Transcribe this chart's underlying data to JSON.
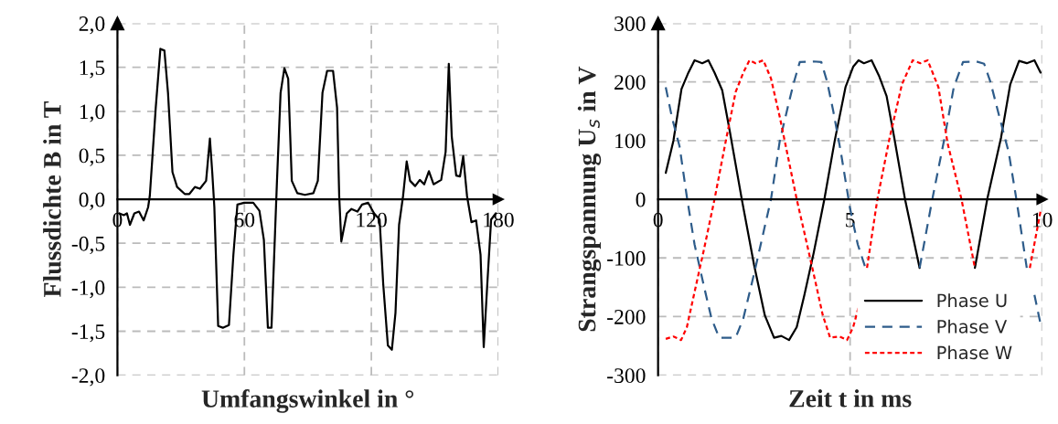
{
  "chart_data": [
    {
      "type": "line",
      "xlabel": "Umfangswinkel in °",
      "ylabel": "Flussdichte B in T",
      "xlim": [
        0,
        180
      ],
      "ylim": [
        -2.0,
        2.0
      ],
      "xticks": [
        0,
        60,
        120,
        180
      ],
      "yticks": [
        {
          "value": -2.0,
          "label": "-2,0"
        },
        {
          "value": -1.5,
          "label": "-1,5"
        },
        {
          "value": -1.0,
          "label": "-1,0"
        },
        {
          "value": -0.5,
          "label": "-0,5"
        },
        {
          "value": 0.0,
          "label": "0,0"
        },
        {
          "value": 0.5,
          "label": "0,5"
        },
        {
          "value": 1.0,
          "label": "1,0"
        },
        {
          "value": 1.5,
          "label": "1,5"
        },
        {
          "value": 2.0,
          "label": "2,0"
        }
      ],
      "grid": true,
      "legend": false,
      "series": [
        {
          "color": "#000000",
          "line_style": "solid",
          "x": [
            0.9,
            3,
            4.5,
            5.9,
            8,
            10.2,
            12.4,
            14.5,
            15.3,
            18.1,
            20.3,
            22.2,
            23.9,
            26,
            28.2,
            31.8,
            34,
            36.6,
            39,
            41.9,
            43.7,
            44.8,
            45.8,
            47.6,
            49.8,
            52.7,
            54.8,
            56.7,
            59.9,
            64.2,
            67.1,
            69.2,
            71.1,
            72.8,
            75.4,
            77.1,
            78.9,
            80.7,
            82.4,
            85,
            88.6,
            92.6,
            94.7,
            96.9,
            99.1,
            101.9,
            103.8,
            104.8,
            105.8,
            108.4,
            110.6,
            113.4,
            115.6,
            118.5,
            121.3,
            123.9,
            125.6,
            127.8,
            129.7,
            131.4,
            133.1,
            135,
            136.7,
            138.3,
            140.7,
            142.9,
            145,
            147.2,
            149.4,
            153,
            155.1,
            156.6,
            158,
            160.1,
            161.9,
            163.4,
            165.2,
            167.3,
            169.5,
            171.6,
            173.1,
            174.8,
            176.6,
            178.8
          ],
          "values": [
            -0.16,
            -0.18,
            -0.16,
            -0.29,
            -0.16,
            -0.14,
            -0.24,
            -0.09,
            0.04,
            1.04,
            1.71,
            1.69,
            1.21,
            0.31,
            0.14,
            0.06,
            0.06,
            0.14,
            0.12,
            0.21,
            0.69,
            0.31,
            -0.09,
            -1.44,
            -1.46,
            -1.43,
            -0.63,
            -0.06,
            -0.04,
            -0.04,
            -0.13,
            -0.46,
            -1.46,
            -1.46,
            0.21,
            1.21,
            1.49,
            1.37,
            0.21,
            0.07,
            0.05,
            0.07,
            0.21,
            1.21,
            1.46,
            1.46,
            1.04,
            0.04,
            -0.48,
            -0.16,
            -0.11,
            -0.14,
            -0.06,
            -0.04,
            -0.16,
            -0.23,
            -0.96,
            -1.66,
            -1.71,
            -1.29,
            -0.29,
            0.04,
            0.43,
            0.21,
            0.15,
            0.22,
            0.17,
            0.32,
            0.17,
            0.22,
            0.54,
            1.54,
            0.71,
            0.27,
            0.26,
            0.49,
            0.04,
            -0.26,
            -0.24,
            -0.63,
            -1.68,
            -0.96,
            -0.23,
            -0.16
          ]
        }
      ]
    },
    {
      "type": "line",
      "xlabel": "Zeit t in ms",
      "ylabel": "Strangspannung U$_{s}$ in V",
      "xlim": [
        0,
        10
      ],
      "ylim": [
        -300,
        300
      ],
      "xticks": [
        0,
        5,
        10
      ],
      "yticks": [
        -300,
        -200,
        -100,
        0,
        100,
        200,
        300
      ],
      "grid": true,
      "legend": "bottom right",
      "series": [
        {
          "name": "Phase U",
          "color": "#000000",
          "line_style": "solid",
          "x": [
            0.2,
            0.4,
            0.61,
            0.79,
            0.95,
            1.15,
            1.31,
            1.47,
            1.67,
            1.87,
            2.18,
            2.5,
            2.78,
            3.02,
            3.21,
            3.41,
            3.61,
            3.81,
            4.05,
            4.33,
            4.6,
            4.88,
            5.08,
            5.22,
            5.36,
            5.56,
            5.75,
            5.95,
            6.15,
            6.43,
            6.81,
            7.5,
            8.25,
            8.57,
            8.93,
            9.17,
            9.4,
            9.6,
            9.8,
            9.96
          ],
          "values": [
            45,
            100,
            188,
            216,
            237,
            232,
            237,
            216,
            186,
            115,
            0,
            -112,
            -198,
            -236,
            -233,
            -240,
            -218,
            -163,
            -92,
            0,
            100,
            191,
            226,
            237,
            232,
            237,
            211,
            176,
            105,
            0,
            -117,
            null,
            -117,
            0,
            105,
            196,
            236,
            232,
            237,
            216
          ]
        },
        {
          "name": "Phase V",
          "color": "#2e5c8a",
          "line_style": "dashed",
          "x": [
            0.2,
            0.36,
            0.56,
            0.75,
            0.95,
            1.19,
            1.39,
            1.59,
            1.83,
            2.02,
            2.22,
            2.5,
            2.78,
            2.94,
            3.17,
            3.41,
            3.53,
            3.69,
            4.05,
            4.25,
            4.4,
            4.56,
            4.76,
            5.0,
            5.2,
            5.4,
            6.1,
            6.81,
            7.14,
            7.46,
            7.7,
            7.94,
            8.29,
            8.49,
            8.65,
            8.89,
            9.13,
            9.33,
            9.6,
            9.7,
            9.8,
            9.96
          ],
          "values": [
            191,
            140,
            90,
            4,
            -77,
            -147,
            -203,
            -236,
            -236,
            -236,
            -203,
            -127,
            -46,
            0,
            100,
            166,
            198,
            234,
            235,
            234,
            201,
            151,
            80,
            -16,
            -77,
            -117,
            null,
            -117,
            0,
            105,
            191,
            234,
            235,
            231,
            201,
            140,
            80,
            0,
            -117,
            null,
            -163,
            -213
          ]
        },
        {
          "name": "Phase W",
          "color": "#ff0000",
          "line_style": "dotted",
          "x": [
            0.2,
            0.4,
            0.6,
            0.75,
            0.95,
            1.19,
            1.47,
            1.75,
            2.02,
            2.22,
            2.38,
            2.54,
            2.74,
            2.94,
            3.17,
            3.61,
            3.81,
            4.05,
            4.29,
            4.48,
            4.72,
            4.92,
            5.08,
            5.22,
            5.3,
            5.44,
            5.71,
            6.03,
            6.35,
            6.63,
            6.83,
            7.02,
            7.3,
            7.54,
            7.9,
            8.25,
            9.0,
            9.68,
            9.96
          ],
          "values": [
            -238,
            -234,
            -240,
            -218,
            -158,
            -87,
            0,
            95,
            183,
            216,
            237,
            232,
            237,
            206,
            140,
            0,
            -57,
            -127,
            -198,
            -236,
            -234,
            -240,
            -218,
            -184,
            null,
            -117,
            0,
            105,
            196,
            237,
            232,
            237,
            191,
            95,
            0,
            -117,
            null,
            -117,
            -20
          ]
        }
      ]
    }
  ]
}
